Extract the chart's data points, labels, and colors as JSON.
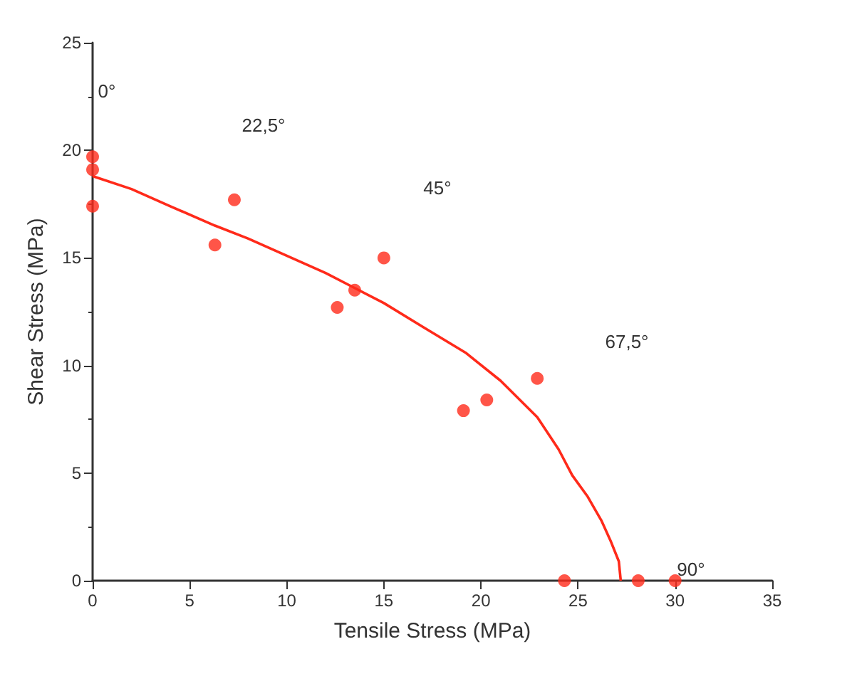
{
  "chart_data": {
    "type": "scatter",
    "xlabel": "Tensile Stress (MPa)",
    "ylabel": "Shear Stress (MPa)",
    "xlim": [
      0,
      35
    ],
    "xticks": [
      0,
      5,
      10,
      15,
      20,
      25,
      30,
      35
    ],
    "ylim": [
      0,
      25
    ],
    "yticks": [
      0,
      5,
      10,
      15,
      20,
      25
    ],
    "grid": false,
    "marker": "circle",
    "series": [
      {
        "color": "#ff2a1a",
        "x": [
          0,
          0,
          0,
          6.3,
          7.3,
          12.6,
          13.5,
          15.0,
          19.1,
          20.3,
          22.9,
          24.3,
          28.1,
          30.0
        ],
        "values": [
          19.7,
          19.1,
          17.4,
          15.6,
          17.7,
          12.7,
          13.5,
          15.0,
          7.9,
          8.4,
          9.4,
          0,
          0,
          0
        ]
      },
      {
        "type": "line",
        "color": "#ff2a1a",
        "marker": "none",
        "line_style": "solid",
        "x": [
          0,
          2,
          4,
          6.3,
          8,
          10,
          12,
          13.5,
          15,
          17,
          19.2,
          21,
          22.9,
          24,
          24.7,
          25.5,
          26.2,
          26.7,
          27.1,
          27.2
        ],
        "values": [
          18.8,
          18.2,
          17.4,
          16.5,
          15.9,
          15.1,
          14.3,
          13.6,
          12.9,
          11.8,
          10.6,
          9.3,
          7.6,
          6.1,
          4.9,
          3.9,
          2.8,
          1.8,
          0.9,
          0
        ]
      }
    ],
    "annotations": [
      "0°",
      "22,5°",
      "45°",
      "67,5°",
      "90°"
    ]
  }
}
